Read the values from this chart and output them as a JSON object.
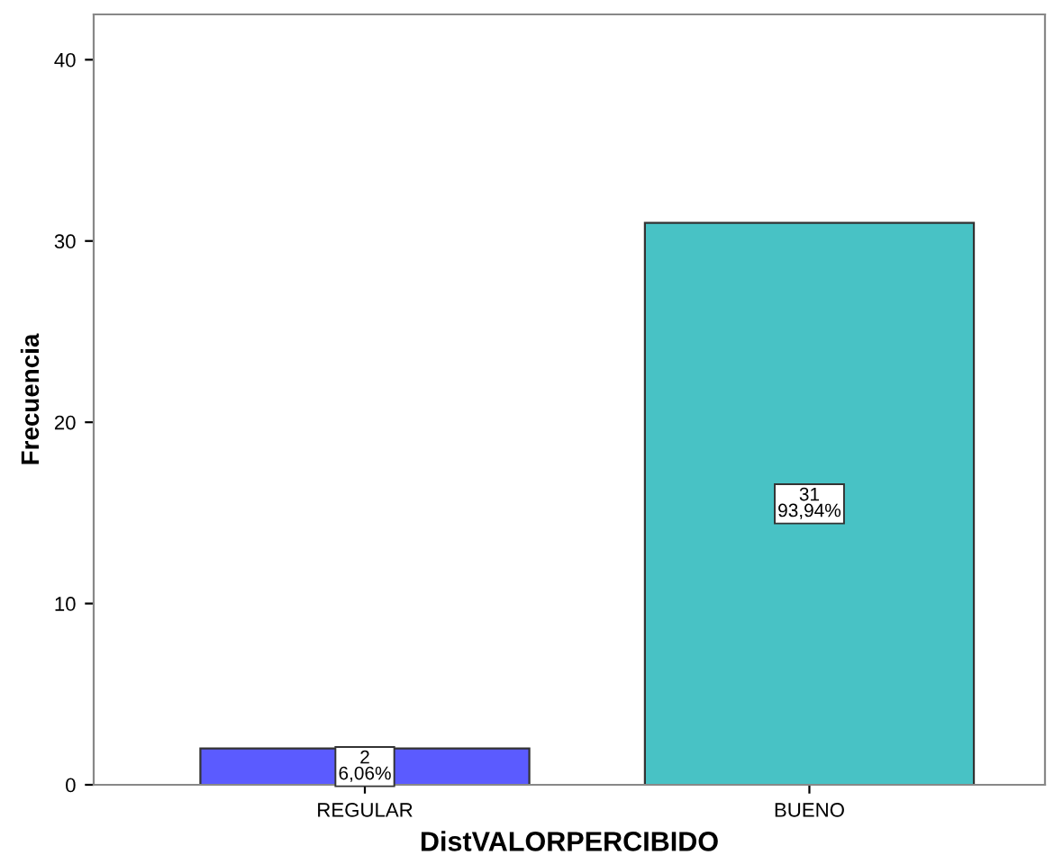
{
  "chart_data": {
    "type": "bar",
    "xlabel": "DistVALORPERCIBIDO",
    "ylabel": "Frecuencia",
    "categories": [
      "REGULAR",
      "BUENO"
    ],
    "values": [
      2,
      31
    ],
    "colors": [
      "#5b5bff",
      "#48c2c5"
    ],
    "value_labels": [
      "2\n6,06%",
      "31\n93,94%"
    ],
    "ylim": [
      0,
      42.5
    ],
    "yticks": [
      0,
      10,
      20,
      30,
      40
    ],
    "grid": false,
    "legend": false
  }
}
